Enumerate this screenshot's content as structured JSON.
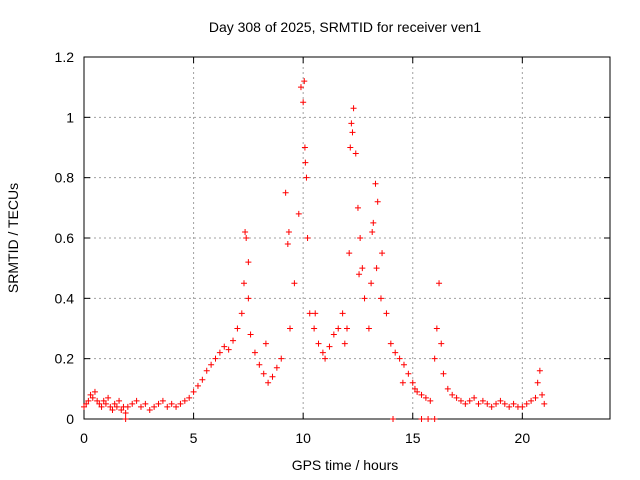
{
  "chart_data": {
    "type": "scatter",
    "title": "Day 308 of 2025, SRMTID for receiver ven1",
    "xlabel": "GPS time / hours",
    "ylabel": "SRMTID / TECUs",
    "xlim": [
      0,
      24
    ],
    "ylim": [
      0,
      1.2
    ],
    "xticks": [
      0,
      5,
      10,
      15,
      20
    ],
    "yticks": [
      0,
      0.2,
      0.4,
      0.6,
      0.8,
      1,
      1.2
    ],
    "ytick_labels": [
      "0",
      "0.2",
      "0.4",
      "0.6",
      "0.8",
      "1",
      "1.2"
    ],
    "grid": true,
    "marker": "+",
    "color": "#ff0000",
    "series": [
      {
        "name": "ven1",
        "x": [
          0.0,
          0.1,
          0.2,
          0.3,
          0.4,
          0.5,
          0.6,
          0.7,
          0.8,
          0.9,
          1.0,
          1.1,
          1.2,
          1.3,
          1.4,
          1.5,
          1.6,
          1.7,
          1.8,
          1.9,
          2.0,
          2.2,
          2.4,
          2.6,
          2.8,
          3.0,
          3.2,
          3.4,
          3.6,
          3.8,
          4.0,
          4.2,
          4.4,
          4.6,
          4.8,
          5.0,
          5.2,
          5.4,
          5.6,
          5.8,
          6.0,
          6.2,
          6.4,
          6.6,
          6.8,
          7.0,
          7.2,
          7.3,
          7.4,
          7.5,
          7.6,
          7.8,
          8.0,
          8.2,
          8.4,
          8.6,
          8.8,
          9.0,
          9.2,
          9.3,
          9.4,
          9.6,
          9.8,
          9.9,
          10.0,
          10.1,
          10.2,
          10.3,
          10.5,
          10.7,
          10.9,
          11.0,
          11.2,
          11.4,
          11.6,
          11.8,
          12.0,
          12.1,
          12.2,
          12.3,
          12.4,
          12.5,
          12.6,
          12.7,
          12.8,
          13.0,
          13.1,
          13.2,
          13.3,
          13.4,
          13.6,
          13.8,
          14.0,
          14.2,
          14.4,
          14.6,
          14.8,
          15.0,
          15.1,
          15.2,
          15.4,
          15.6,
          15.8,
          16.0,
          16.1,
          16.2,
          16.3,
          16.4,
          16.6,
          16.8,
          17.0,
          17.2,
          17.4,
          17.6,
          17.8,
          18.0,
          18.2,
          18.4,
          18.6,
          18.8,
          19.0,
          19.2,
          19.4,
          19.6,
          19.8,
          20.0,
          20.2,
          20.4,
          20.6,
          20.7,
          20.8,
          20.9,
          21.0,
          1.9,
          14.1,
          15.4,
          15.7,
          16.0,
          10.05,
          10.08,
          12.25,
          12.15,
          13.15,
          13.35,
          7.35,
          9.35,
          10.15,
          11.9,
          13.55,
          7.5,
          8.3,
          10.55,
          12.55,
          14.55
        ],
        "y": [
          0.04,
          0.05,
          0.06,
          0.08,
          0.07,
          0.09,
          0.06,
          0.05,
          0.04,
          0.06,
          0.05,
          0.07,
          0.04,
          0.03,
          0.05,
          0.04,
          0.06,
          0.03,
          0.04,
          0.02,
          0.04,
          0.05,
          0.06,
          0.04,
          0.05,
          0.03,
          0.04,
          0.05,
          0.06,
          0.04,
          0.05,
          0.04,
          0.05,
          0.06,
          0.07,
          0.09,
          0.11,
          0.13,
          0.16,
          0.18,
          0.2,
          0.22,
          0.24,
          0.23,
          0.26,
          0.3,
          0.35,
          0.45,
          0.6,
          0.4,
          0.28,
          0.22,
          0.18,
          0.15,
          0.12,
          0.14,
          0.17,
          0.2,
          0.75,
          0.58,
          0.3,
          0.45,
          0.68,
          1.1,
          1.05,
          0.85,
          0.6,
          0.35,
          0.3,
          0.25,
          0.22,
          0.2,
          0.24,
          0.28,
          0.3,
          0.35,
          0.3,
          0.55,
          0.98,
          1.03,
          0.88,
          0.7,
          0.6,
          0.5,
          0.4,
          0.3,
          0.45,
          0.65,
          0.78,
          0.72,
          0.55,
          0.35,
          0.25,
          0.22,
          0.2,
          0.18,
          0.15,
          0.12,
          0.1,
          0.09,
          0.08,
          0.07,
          0.06,
          0.2,
          0.3,
          0.45,
          0.25,
          0.15,
          0.1,
          0.08,
          0.07,
          0.06,
          0.05,
          0.06,
          0.07,
          0.05,
          0.06,
          0.05,
          0.04,
          0.05,
          0.06,
          0.05,
          0.04,
          0.05,
          0.04,
          0.04,
          0.05,
          0.06,
          0.07,
          0.12,
          0.16,
          0.08,
          0.05,
          0.0,
          0.0,
          0.0,
          0.0,
          0.0,
          1.12,
          0.9,
          0.95,
          0.9,
          0.62,
          0.5,
          0.62,
          0.62,
          0.8,
          0.25,
          0.4,
          0.52,
          0.25,
          0.35,
          0.48,
          0.12
        ]
      }
    ]
  }
}
